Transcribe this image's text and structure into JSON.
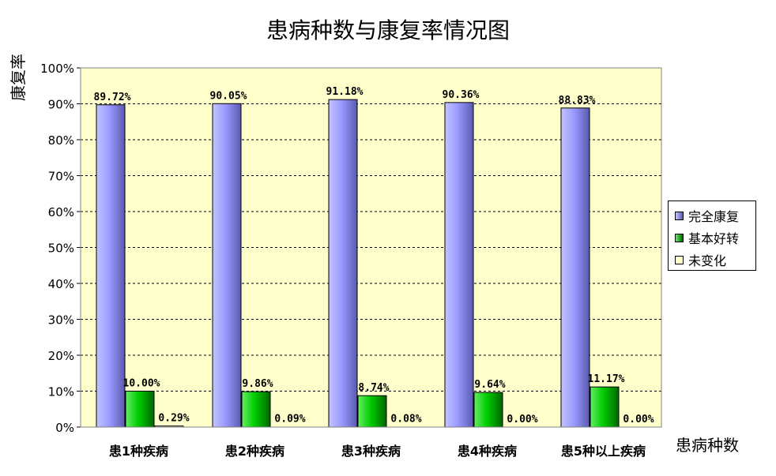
{
  "chart_data": {
    "type": "bar",
    "title": "患病种数与康复率情况图",
    "ylabel": "康复率",
    "xlabel": "患病种数",
    "categories": [
      "患1种疾病",
      "患2种疾病",
      "患3种疾病",
      "患4种疾病",
      "患5种以上疾病"
    ],
    "series": [
      {
        "name": "完全康复",
        "values": [
          89.72,
          90.05,
          91.18,
          90.36,
          88.83
        ],
        "labels": [
          "89.72%",
          "90.05%",
          "91.18%",
          "90.36%",
          "88.83%"
        ],
        "color": "#9999ff"
      },
      {
        "name": "基本好转",
        "values": [
          10.0,
          9.86,
          8.74,
          9.64,
          11.17
        ],
        "labels": [
          "10.00%",
          "9.86%",
          "8.74%",
          "9.64%",
          "11.17%"
        ],
        "color": "#00bb00"
      },
      {
        "name": "未变化",
        "values": [
          0.29,
          0.09,
          0.08,
          0.0,
          0.0
        ],
        "labels": [
          "0.29%",
          "0.09%",
          "0.08%",
          "0.00%",
          "0.00%"
        ],
        "color": "#ffffcc"
      }
    ],
    "ylim": [
      0,
      100
    ],
    "yticks": [
      "0%",
      "10%",
      "20%",
      "30%",
      "40%",
      "50%",
      "60%",
      "70%",
      "80%",
      "90%",
      "100%"
    ],
    "grid": true,
    "plot_background": "#ffffcc",
    "legend_position": "right"
  }
}
